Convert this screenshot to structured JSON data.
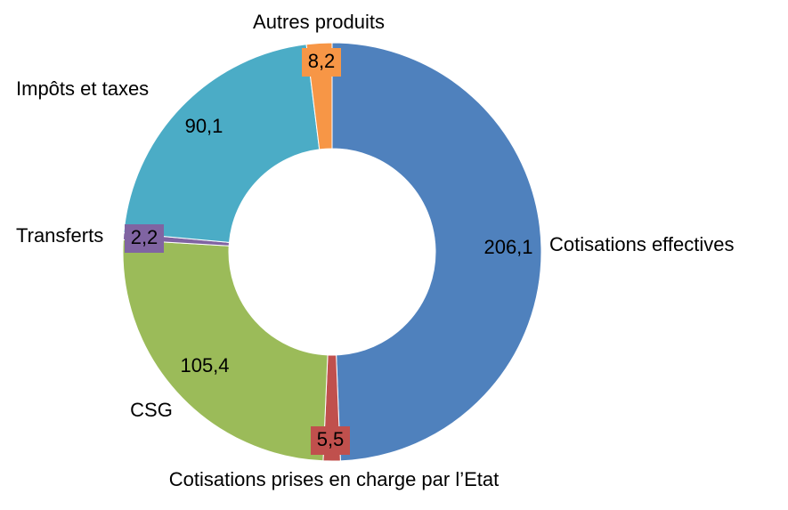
{
  "chart_data": {
    "type": "donut",
    "categories": [
      "Cotisations effectives",
      "Cotisations prises en charge par l’Etat",
      "CSG",
      "Transferts",
      "Impôts et taxes",
      "Autres produits"
    ],
    "values": [
      206.1,
      5.5,
      105.4,
      2.2,
      90.1,
      8.2
    ],
    "value_labels": [
      "206,1",
      "5,5",
      "105,4",
      "2,2",
      "90,1",
      "8,2"
    ],
    "colors": [
      "#4f81bd",
      "#c0504d",
      "#9bbb59",
      "#8064a2",
      "#4bacc6",
      "#f79646"
    ]
  }
}
